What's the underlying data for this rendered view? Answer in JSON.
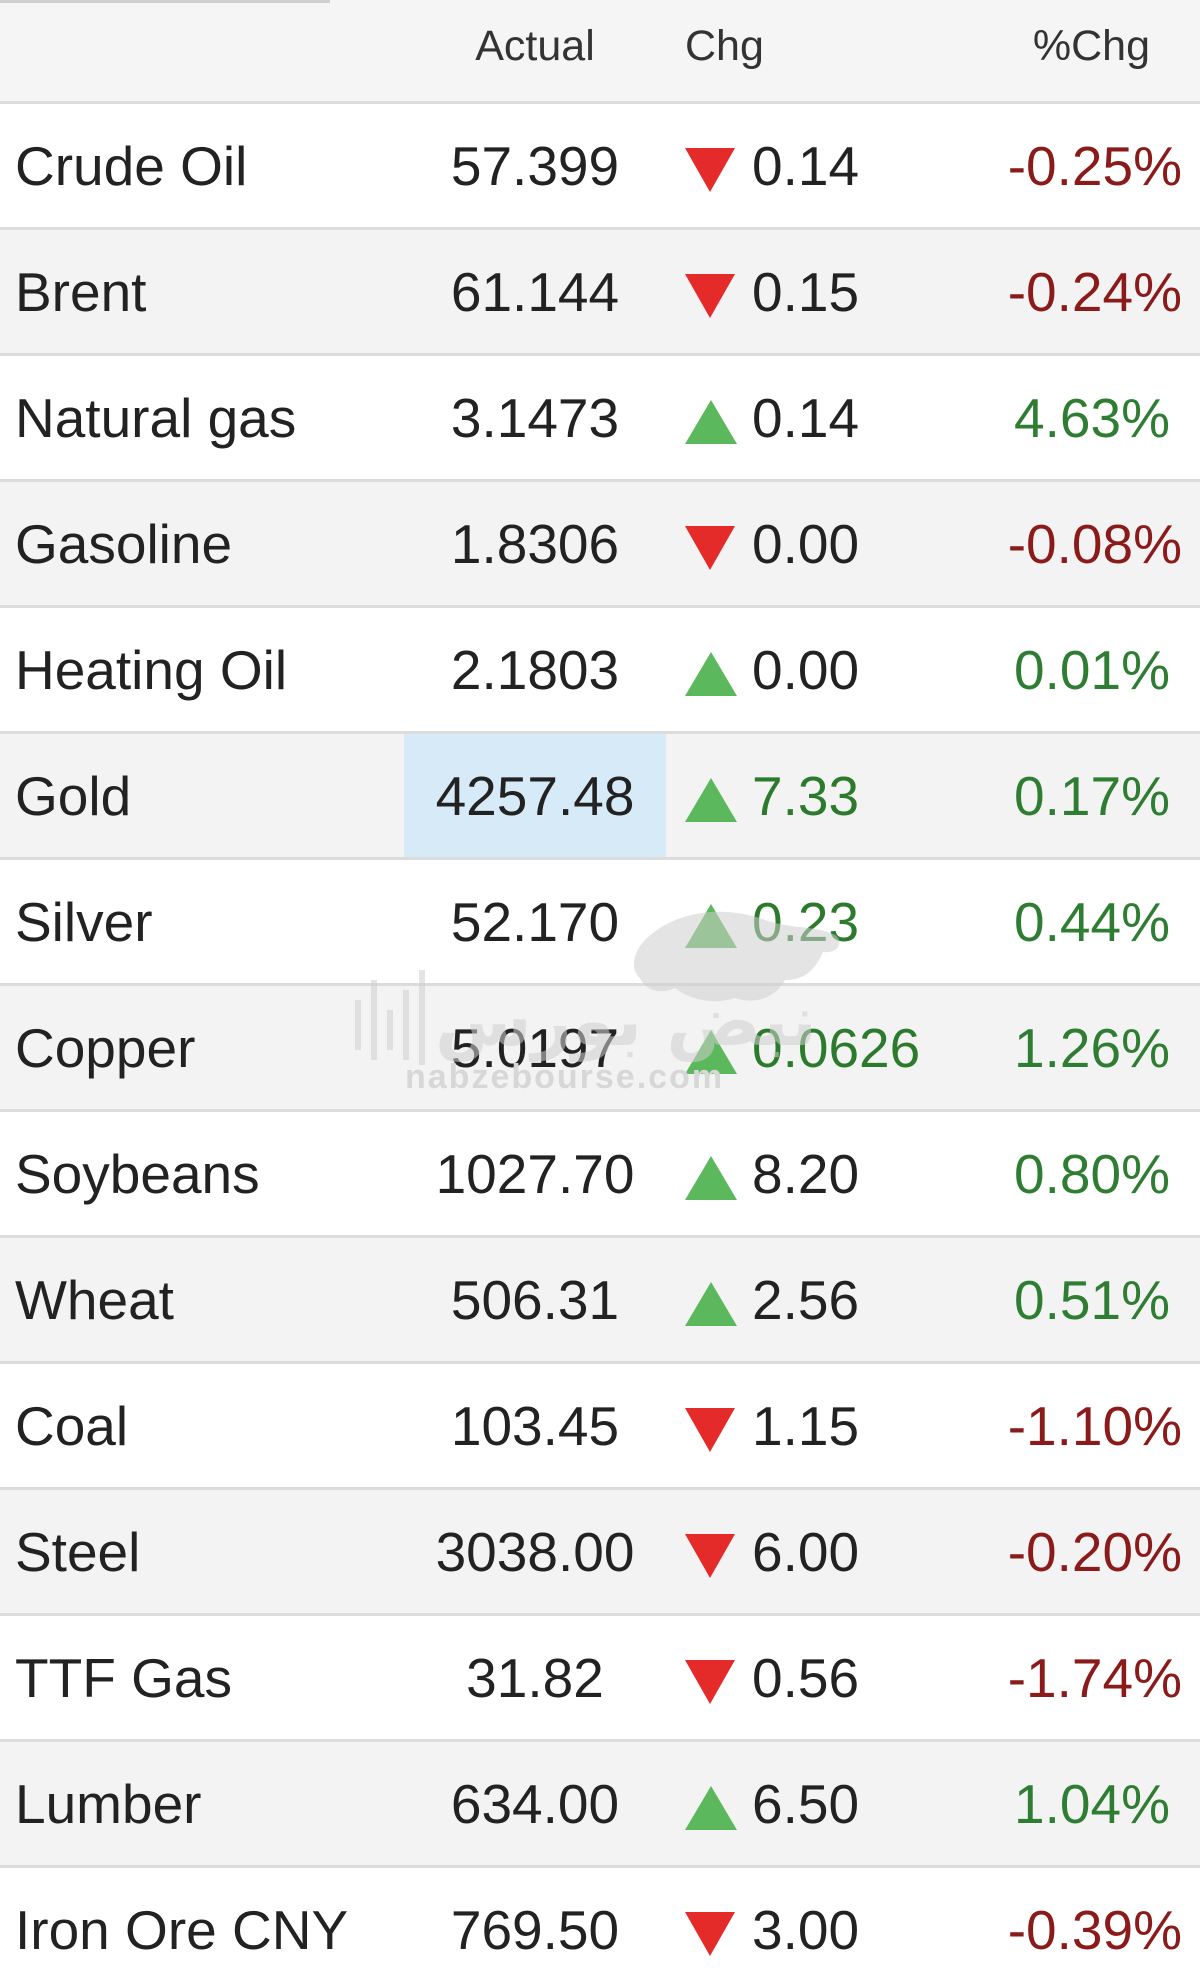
{
  "header": {
    "actual_label": "Actual",
    "chg_label": "Chg",
    "pct_label": "%Chg"
  },
  "rows": [
    {
      "name": "Crude Oil",
      "actual": "57.399",
      "direction": "down",
      "chg": "0.14",
      "pct": "-0.25%"
    },
    {
      "name": "Brent",
      "actual": "61.144",
      "direction": "down",
      "chg": "0.15",
      "pct": "-0.24%"
    },
    {
      "name": "Natural gas",
      "actual": "3.1473",
      "direction": "up",
      "chg": "0.14",
      "pct": "4.63%"
    },
    {
      "name": "Gasoline",
      "actual": "1.8306",
      "direction": "down",
      "chg": "0.00",
      "pct": "-0.08%"
    },
    {
      "name": "Heating Oil",
      "actual": "2.1803",
      "direction": "up",
      "chg": "0.00",
      "pct": "0.01%"
    },
    {
      "name": "Gold",
      "actual": "4257.48",
      "direction": "up",
      "chg": "7.33",
      "pct": "0.17%",
      "highlighted": true
    },
    {
      "name": "Silver",
      "actual": "52.170",
      "direction": "up",
      "chg": "0.23",
      "pct": "0.44%"
    },
    {
      "name": "Copper",
      "actual": "5.0197",
      "direction": "up",
      "chg": "0.0626",
      "pct": "1.26%"
    },
    {
      "name": "Soybeans",
      "actual": "1027.70",
      "direction": "up",
      "chg": "8.20",
      "pct": "0.80%"
    },
    {
      "name": "Wheat",
      "actual": "506.31",
      "direction": "up",
      "chg": "2.56",
      "pct": "0.51%"
    },
    {
      "name": "Coal",
      "actual": "103.45",
      "direction": "down",
      "chg": "1.15",
      "pct": "-1.10%"
    },
    {
      "name": "Steel",
      "actual": "3038.00",
      "direction": "down",
      "chg": "6.00",
      "pct": "-0.20%"
    },
    {
      "name": "TTF Gas",
      "actual": "31.82",
      "direction": "down",
      "chg": "0.56",
      "pct": "-1.74%"
    },
    {
      "name": "Lumber",
      "actual": "634.00",
      "direction": "up",
      "chg": "6.50",
      "pct": "1.04%"
    },
    {
      "name": "Iron Ore CNY",
      "actual": "769.50",
      "direction": "down",
      "chg": "3.00",
      "pct": "-0.39%"
    }
  ],
  "watermark": {
    "text_arabic": "نبض بورس",
    "url": "nabzebourse.com",
    "icon": "bull-logo-icon"
  },
  "colors": {
    "negative": "#8b1a1a",
    "positive": "#2e7d32",
    "arrow_down": "#e52a2a",
    "arrow_up": "#5cb85c",
    "highlight": "#d6eaf8"
  }
}
